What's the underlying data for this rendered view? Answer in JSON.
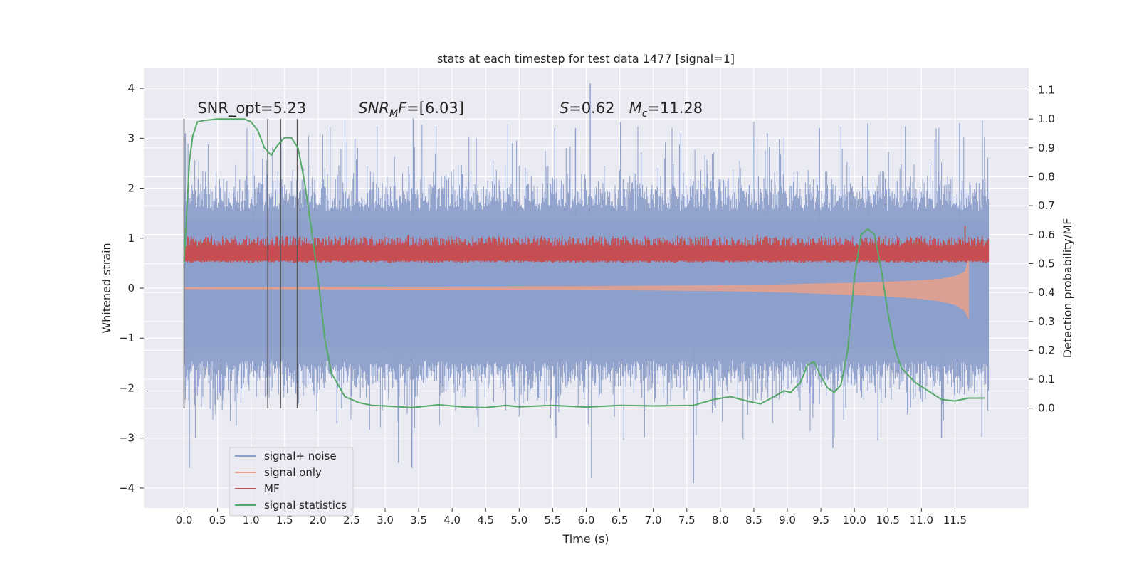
{
  "chart_data": {
    "type": "line",
    "title": "stats at each timestep for test data 1477 [signal=1]",
    "xlabel": "Time (s)",
    "ylabel": "Whitened strain",
    "y2label": "Detection probability/MF",
    "xlim": [
      -0.6,
      12.6
    ],
    "ylim": [
      -4.4,
      4.4
    ],
    "y2lim": [
      -0.345,
      1.175
    ],
    "x_ticks": [
      "0.0",
      "0.5",
      "1.0",
      "1.5",
      "2.0",
      "2.5",
      "3.0",
      "3.5",
      "4.0",
      "4.5",
      "5.0",
      "5.5",
      "6.0",
      "6.5",
      "7.0",
      "7.5",
      "8.0",
      "8.5",
      "9.0",
      "9.5",
      "10.0",
      "10.5",
      "11.0",
      "11.5"
    ],
    "y_ticks": [
      "4",
      "3",
      "2",
      "1",
      "0",
      "−1",
      "−2",
      "−3",
      "−4"
    ],
    "y2_ticks": [
      "1.1",
      "1.0",
      "0.9",
      "0.8",
      "0.7",
      "0.6",
      "0.5",
      "0.4",
      "0.3",
      "0.2",
      "0.1",
      "0.0"
    ],
    "grid": true,
    "legend_position": "lower-left",
    "legend": [
      {
        "name": "signal+ noise",
        "color": "#8da0cb"
      },
      {
        "name": "signal only",
        "color": "#e9a08a"
      },
      {
        "name": "MF",
        "color": "#c44e52"
      },
      {
        "name": "signal statistics",
        "color": "#55a868"
      }
    ],
    "series": [
      {
        "name": "signal+ noise",
        "color": "#8da0cb",
        "axis": "left",
        "x_range": [
          0.0,
          12.0
        ],
        "envelope_approx": {
          "typical_max": 2.0,
          "typical_min": -2.0,
          "peak_max": 4.1,
          "peak_min": -3.9
        }
      },
      {
        "name": "signal only",
        "color": "#e9a08a",
        "axis": "left",
        "x": [
          0.0,
          3.0,
          6.0,
          8.0,
          9.0,
          10.0,
          10.5,
          11.0,
          11.3,
          11.5,
          11.65,
          11.7
        ],
        "y_low": [
          -0.01,
          -0.02,
          -0.03,
          -0.05,
          -0.08,
          -0.13,
          -0.16,
          -0.21,
          -0.26,
          -0.33,
          -0.45,
          -0.6
        ],
        "y_high": [
          0.01,
          0.02,
          0.03,
          0.05,
          0.07,
          0.1,
          0.12,
          0.15,
          0.18,
          0.23,
          0.32,
          0.55
        ]
      },
      {
        "name": "MF",
        "color": "#c44e52",
        "axis": "right",
        "x_range": [
          0.0,
          12.0
        ],
        "band_approx": [
          0.505,
          0.57
        ],
        "spikes": [
          {
            "x": 11.65,
            "y": 0.63
          },
          {
            "x": 3.35,
            "y": 0.6
          },
          {
            "x": 8.55,
            "y": 0.6
          }
        ]
      },
      {
        "name": "signal statistics",
        "color": "#55a868",
        "axis": "right",
        "x": [
          0.0,
          0.08,
          0.13,
          0.2,
          0.3,
          0.5,
          0.7,
          0.9,
          1.0,
          1.1,
          1.2,
          1.3,
          1.4,
          1.5,
          1.6,
          1.7,
          1.8,
          1.9,
          2.0,
          2.1,
          2.2,
          2.4,
          2.6,
          2.8,
          3.0,
          3.4,
          3.8,
          4.2,
          4.5,
          4.8,
          5.0,
          5.5,
          6.0,
          6.5,
          7.0,
          7.6,
          7.9,
          8.15,
          8.4,
          8.6,
          8.8,
          8.95,
          9.05,
          9.2,
          9.3,
          9.4,
          9.5,
          9.6,
          9.7,
          9.8,
          9.9,
          10.0,
          10.1,
          10.2,
          10.3,
          10.4,
          10.5,
          10.6,
          10.7,
          10.9,
          11.1,
          11.3,
          11.5,
          11.7,
          11.9,
          11.95
        ],
        "y": [
          0.5,
          0.85,
          0.94,
          0.99,
          0.995,
          1.0,
          1.0,
          1.0,
          0.99,
          0.96,
          0.9,
          0.875,
          0.91,
          0.935,
          0.935,
          0.9,
          0.78,
          0.62,
          0.45,
          0.24,
          0.12,
          0.04,
          0.02,
          0.01,
          0.008,
          0.002,
          0.012,
          0.004,
          0.002,
          0.01,
          0.005,
          0.01,
          0.004,
          0.01,
          0.008,
          0.01,
          0.03,
          0.04,
          0.025,
          0.015,
          0.04,
          0.06,
          0.055,
          0.09,
          0.15,
          0.16,
          0.11,
          0.07,
          0.055,
          0.08,
          0.2,
          0.45,
          0.6,
          0.62,
          0.6,
          0.48,
          0.33,
          0.21,
          0.14,
          0.09,
          0.06,
          0.03,
          0.025,
          0.035,
          0.035,
          0.035
        ]
      }
    ],
    "vertical_lines": [
      {
        "x": 0.0,
        "y_top": 1.0,
        "y_bottom": 0.0
      },
      {
        "x": 1.25,
        "y_top": 1.0,
        "y_bottom": 0.0
      },
      {
        "x": 1.44,
        "y_top": 1.0,
        "y_bottom": 0.0
      },
      {
        "x": 1.69,
        "y_top": 1.0,
        "y_bottom": 0.0
      }
    ],
    "annotations": [
      {
        "text": "SNR_opt=5.23",
        "x": 0.2,
        "y": 1.02
      },
      {
        "text": "SNR_MF=[6.03]",
        "x": 2.6,
        "y": 1.02
      },
      {
        "text": "S=0.62   M_c=11.28",
        "x": 5.6,
        "y": 1.02
      }
    ]
  }
}
